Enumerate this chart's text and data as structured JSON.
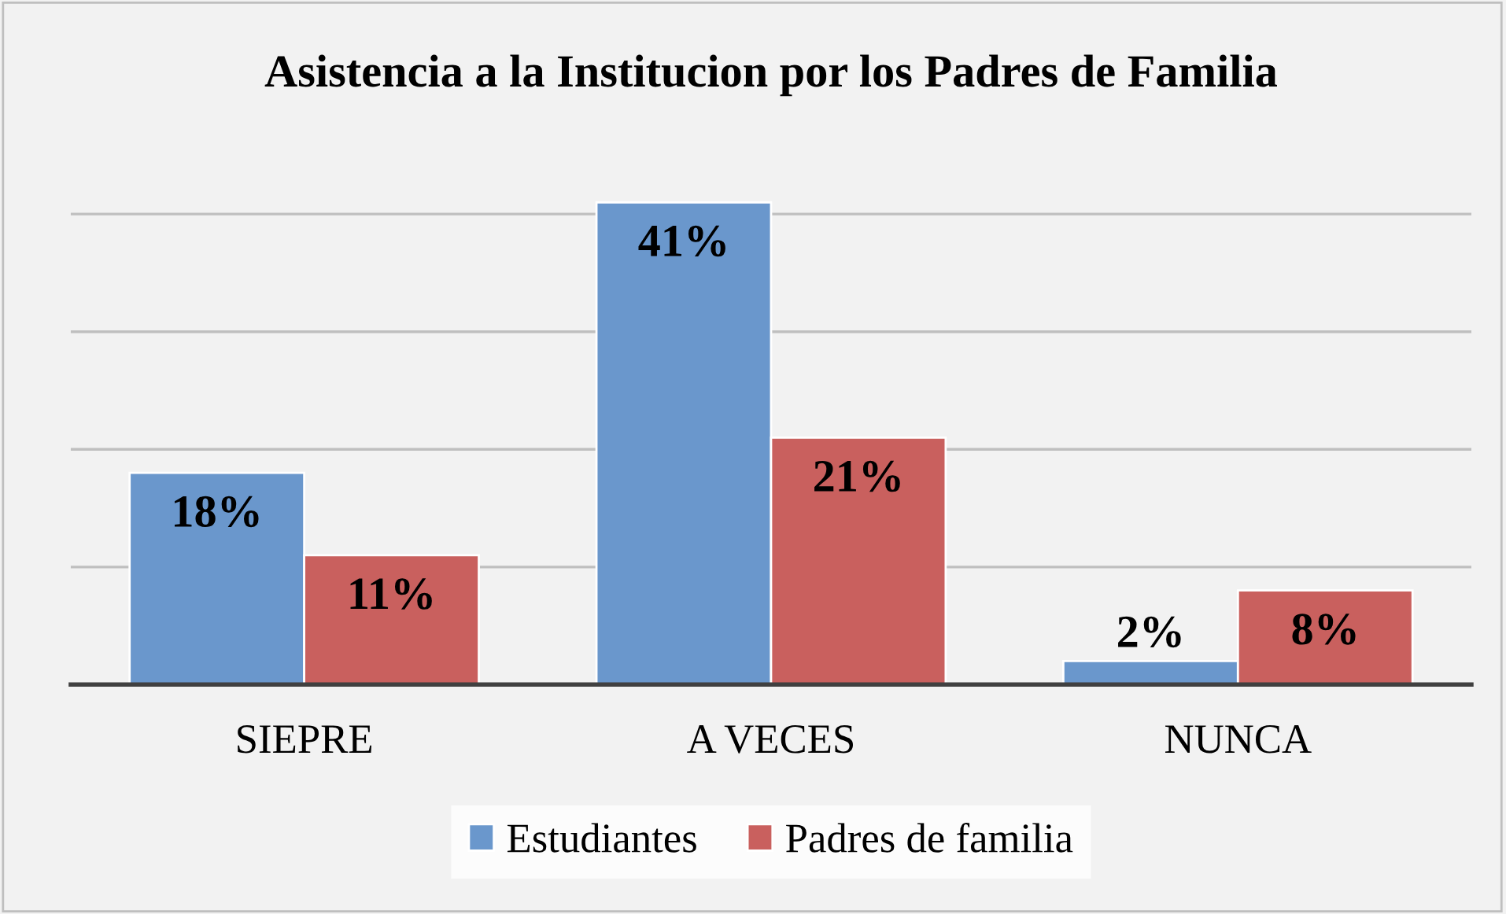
{
  "chart_data": {
    "type": "bar",
    "title": "Asistencia a la Institucion por los Padres de Familia",
    "categories": [
      "SIEPRE",
      "A VECES",
      "NUNCA"
    ],
    "series": [
      {
        "name": "Estudiantes",
        "color": "#6a97cc",
        "values": [
          18,
          41,
          2
        ],
        "value_labels": [
          "18%",
          "41%",
          "2%"
        ]
      },
      {
        "name": "Padres de familia",
        "color": "#c9605e",
        "values": [
          11,
          21,
          8
        ],
        "value_labels": [
          "11%",
          "21%",
          "8%"
        ]
      }
    ],
    "tick_labels": "x",
    "grid": "y",
    "legend": "bottom"
  }
}
